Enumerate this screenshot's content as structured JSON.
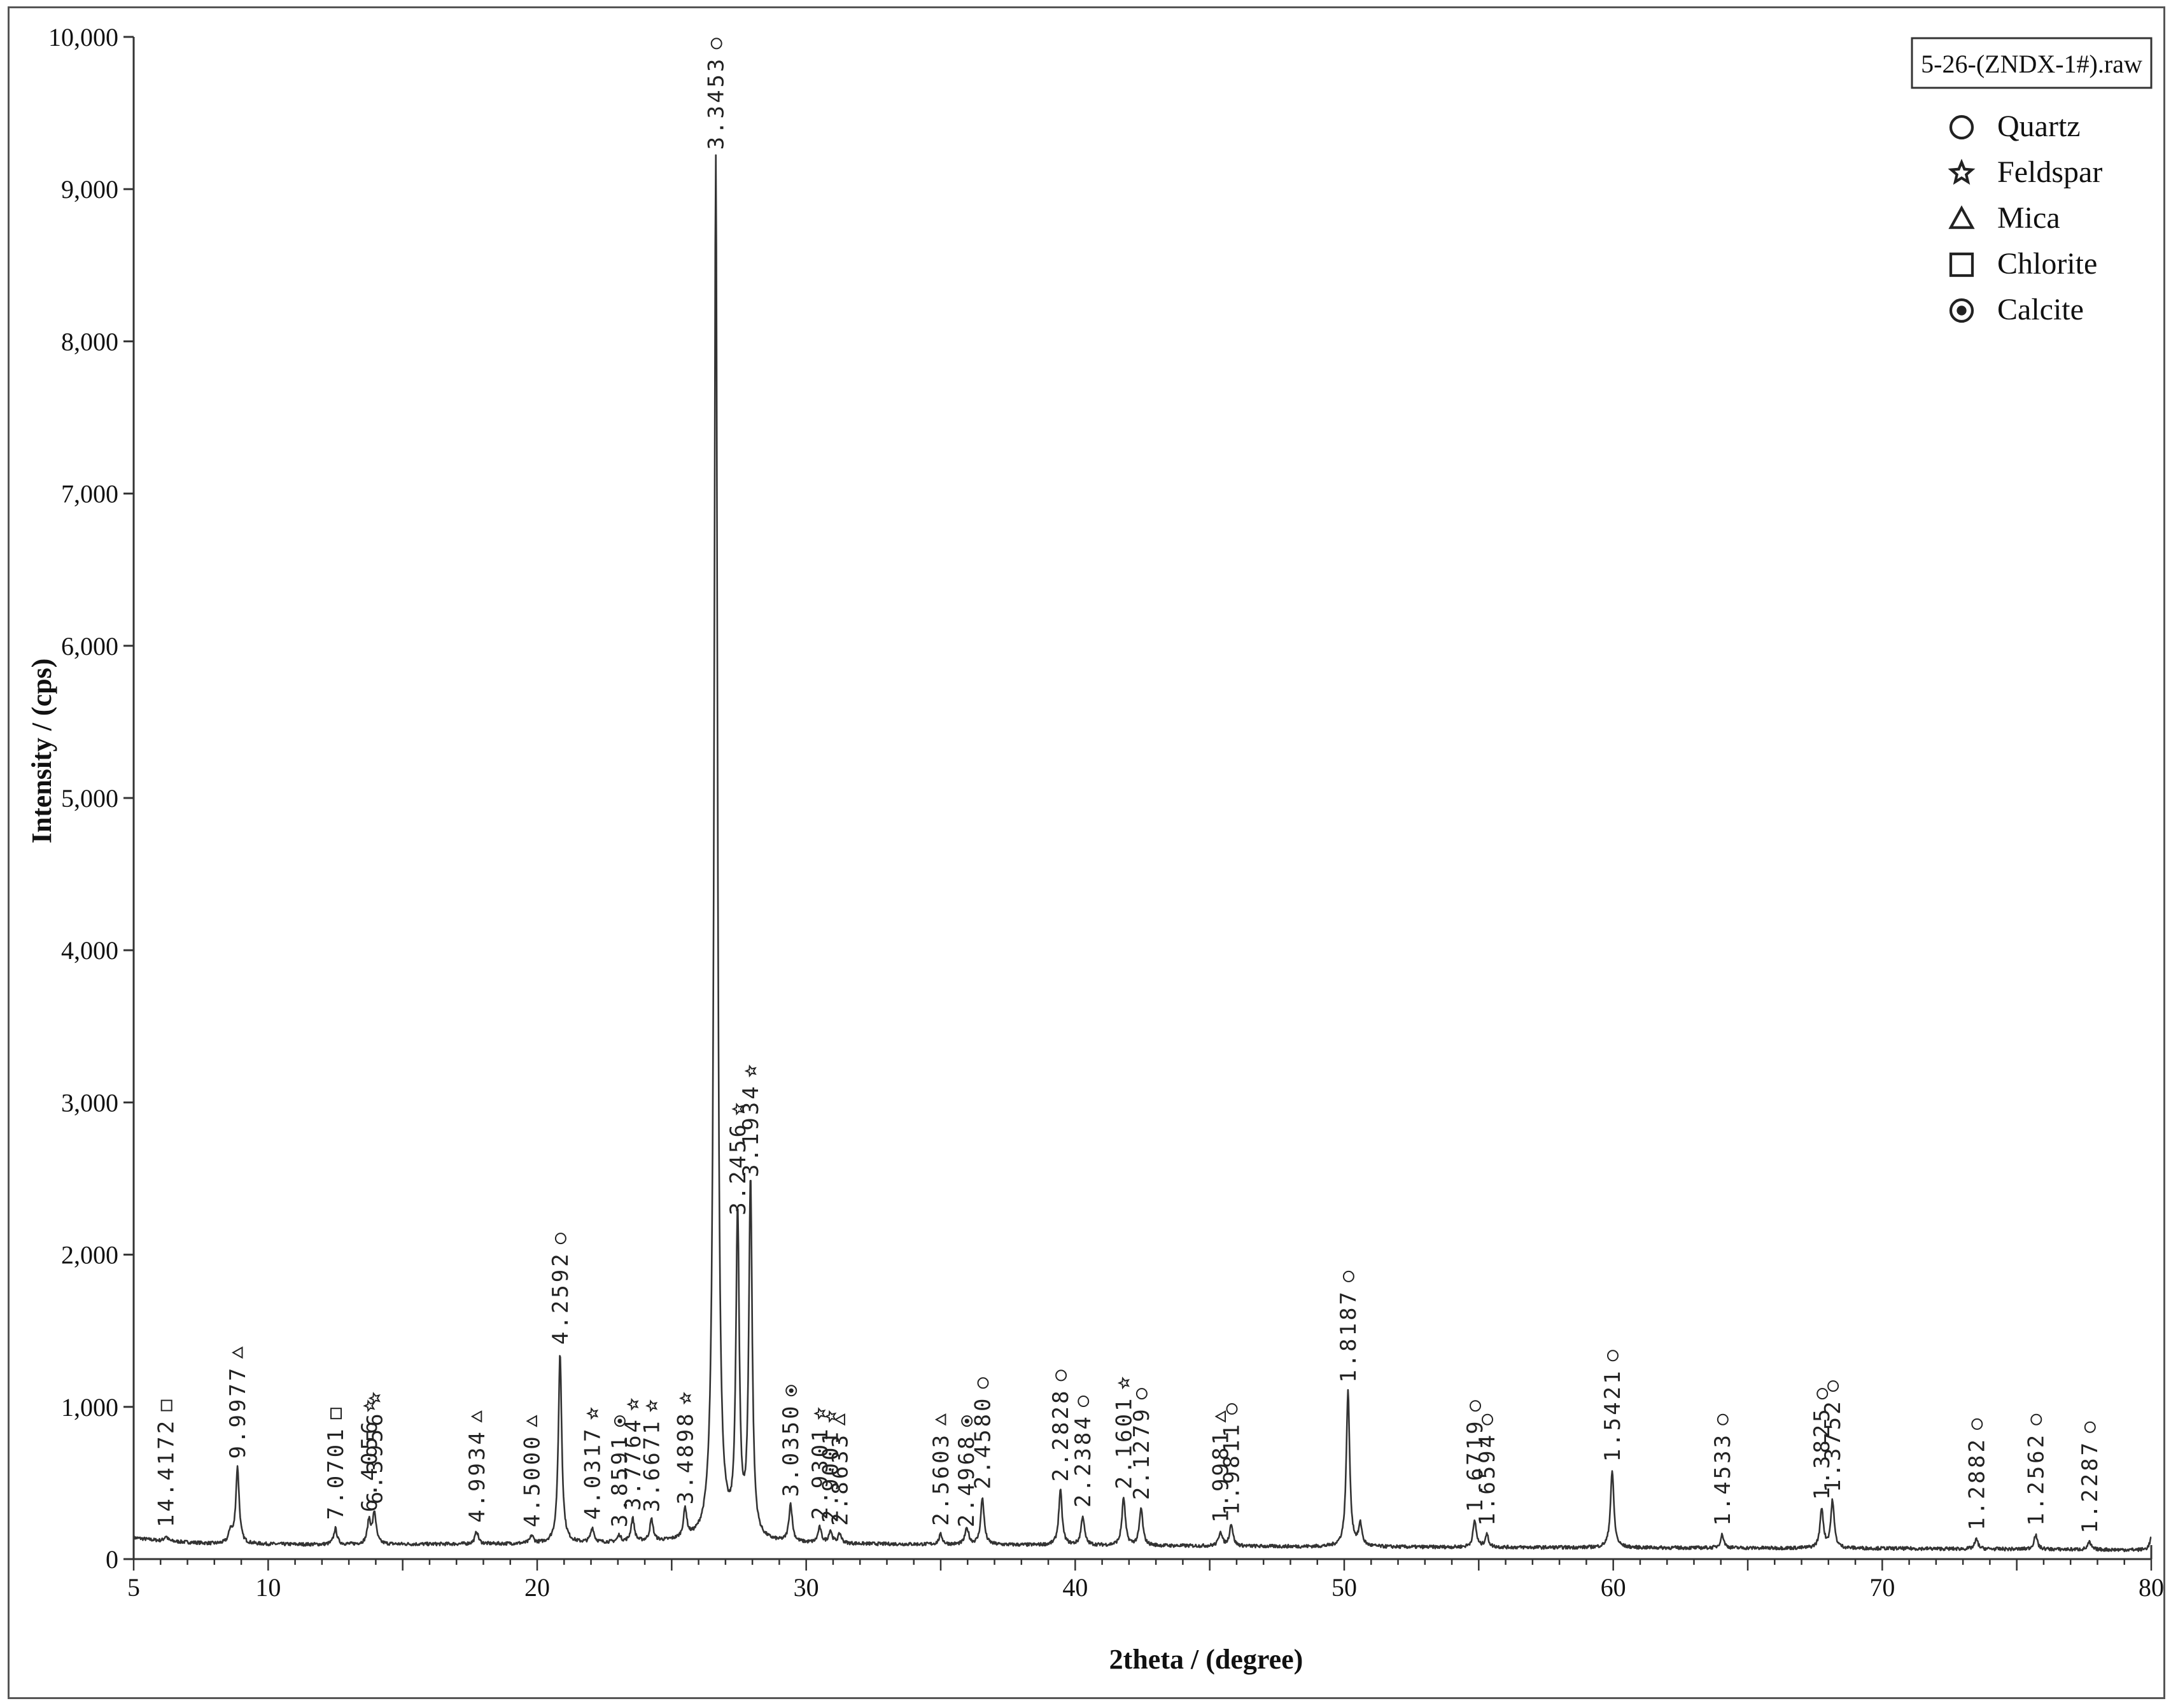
{
  "chart_data": {
    "type": "line",
    "file_name": "5-26-(ZNDX-1#).raw",
    "xlabel": "2theta / (degree)",
    "ylabel": "Intensity / (cps)",
    "xlim": [
      5,
      80
    ],
    "ylim": [
      0,
      10000
    ],
    "xticks": [
      5,
      10,
      20,
      30,
      40,
      50,
      60,
      70,
      80
    ],
    "yticks": [
      {
        "value": 0,
        "label": "0"
      },
      {
        "value": 1000,
        "label": "1,000"
      },
      {
        "value": 2000,
        "label": "2,000"
      },
      {
        "value": 3000,
        "label": "3,000"
      },
      {
        "value": 4000,
        "label": "4,000"
      },
      {
        "value": 5000,
        "label": "5,000"
      },
      {
        "value": 6000,
        "label": "6,000"
      },
      {
        "value": 7000,
        "label": "7,000"
      },
      {
        "value": 8000,
        "label": "8,000"
      },
      {
        "value": 9000,
        "label": "9,000"
      },
      {
        "value": 10000,
        "label": "10,000"
      }
    ],
    "grid": false,
    "legend_position": "top-right",
    "legend": [
      {
        "symbol": "circle",
        "label": "Quartz"
      },
      {
        "symbol": "star",
        "label": "Feldspar"
      },
      {
        "symbol": "triangle",
        "label": "Mica"
      },
      {
        "symbol": "square",
        "label": "Chlorite"
      },
      {
        "symbol": "bullseye",
        "label": "Calcite"
      }
    ],
    "baseline": [
      [
        5,
        140
      ],
      [
        6,
        120
      ],
      [
        8,
        100
      ],
      [
        12,
        95
      ],
      [
        20,
        100
      ],
      [
        25,
        110
      ],
      [
        30,
        100
      ],
      [
        40,
        90
      ],
      [
        50,
        80
      ],
      [
        60,
        75
      ],
      [
        70,
        70
      ],
      [
        80,
        60
      ]
    ],
    "peaks": [
      {
        "x": 6.2,
        "y": 150,
        "label": "14.4172",
        "symbol": "square"
      },
      {
        "x": 8.86,
        "y": 600,
        "label": "9.9977",
        "symbol": "triangle"
      },
      {
        "x": 12.5,
        "y": 200,
        "label": "7.0701",
        "symbol": "square"
      },
      {
        "x": 13.75,
        "y": 250,
        "label": "6.4056",
        "symbol": "star"
      },
      {
        "x": 13.95,
        "y": 300,
        "label": "6.3956",
        "symbol": "star"
      },
      {
        "x": 17.75,
        "y": 180,
        "label": "4.9934",
        "symbol": "triangle"
      },
      {
        "x": 19.8,
        "y": 150,
        "label": "4.5000",
        "symbol": "triangle"
      },
      {
        "x": 20.85,
        "y": 1350,
        "label": "4.2592",
        "symbol": "circle"
      },
      {
        "x": 22.05,
        "y": 200,
        "label": "4.0317",
        "symbol": "star"
      },
      {
        "x": 23.05,
        "y": 150,
        "label": "3.8591",
        "symbol": "bullseye"
      },
      {
        "x": 23.55,
        "y": 260,
        "label": "3.7764",
        "symbol": "star"
      },
      {
        "x": 24.25,
        "y": 250,
        "label": "3.6671",
        "symbol": "star"
      },
      {
        "x": 25.5,
        "y": 300,
        "label": "3.4898",
        "symbol": "star"
      },
      {
        "x": 26.64,
        "y": 9200,
        "label": "3.3453",
        "symbol": "circle"
      },
      {
        "x": 27.45,
        "y": 2200,
        "label": "3.2456",
        "symbol": "star"
      },
      {
        "x": 27.93,
        "y": 2450,
        "label": "3.1934",
        "symbol": "star"
      },
      {
        "x": 29.42,
        "y": 350,
        "label": "3.0350",
        "symbol": "bullseye"
      },
      {
        "x": 30.5,
        "y": 200,
        "label": "2.9301",
        "symbol": "star"
      },
      {
        "x": 30.9,
        "y": 180,
        "label": "2.9001",
        "symbol": "star"
      },
      {
        "x": 31.25,
        "y": 160,
        "label": "2.8633",
        "symbol": "triangle"
      },
      {
        "x": 35.0,
        "y": 160,
        "label": "2.5603",
        "symbol": "triangle"
      },
      {
        "x": 35.95,
        "y": 150,
        "label": "2.4968",
        "symbol": "bullseye"
      },
      {
        "x": 36.55,
        "y": 400,
        "label": "2.4580",
        "symbol": "circle"
      },
      {
        "x": 39.45,
        "y": 450,
        "label": "2.2828",
        "symbol": "circle"
      },
      {
        "x": 40.28,
        "y": 280,
        "label": "2.2384",
        "symbol": "circle"
      },
      {
        "x": 41.8,
        "y": 400,
        "label": "2.1601",
        "symbol": "star"
      },
      {
        "x": 42.45,
        "y": 330,
        "label": "2.1279",
        "symbol": "circle"
      },
      {
        "x": 45.4,
        "y": 180,
        "label": "1.9981",
        "symbol": "triangle"
      },
      {
        "x": 45.8,
        "y": 230,
        "label": "1.9811",
        "symbol": "circle"
      },
      {
        "x": 50.14,
        "y": 1100,
        "label": "1.8187",
        "symbol": "circle"
      },
      {
        "x": 54.85,
        "y": 250,
        "label": "1.6719",
        "symbol": "circle"
      },
      {
        "x": 55.3,
        "y": 160,
        "label": "1.6594",
        "symbol": "circle"
      },
      {
        "x": 59.96,
        "y": 580,
        "label": "1.5421",
        "symbol": "circle"
      },
      {
        "x": 64.05,
        "y": 160,
        "label": "1.4533",
        "symbol": "circle"
      },
      {
        "x": 67.75,
        "y": 330,
        "label": "1.3825",
        "symbol": "circle"
      },
      {
        "x": 68.15,
        "y": 380,
        "label": "1.3752",
        "symbol": "circle"
      },
      {
        "x": 73.5,
        "y": 130,
        "label": "1.2882",
        "symbol": "circle"
      },
      {
        "x": 75.7,
        "y": 160,
        "label": "1.2562",
        "symbol": "circle"
      },
      {
        "x": 77.7,
        "y": 110,
        "label": "1.2287",
        "symbol": "circle"
      }
    ],
    "extra_peaks": [
      {
        "x": 8.6,
        "y": 180
      },
      {
        "x": 36.0,
        "y": 150
      },
      {
        "x": 50.6,
        "y": 220
      },
      {
        "x": 80.0,
        "y": 140
      }
    ]
  }
}
